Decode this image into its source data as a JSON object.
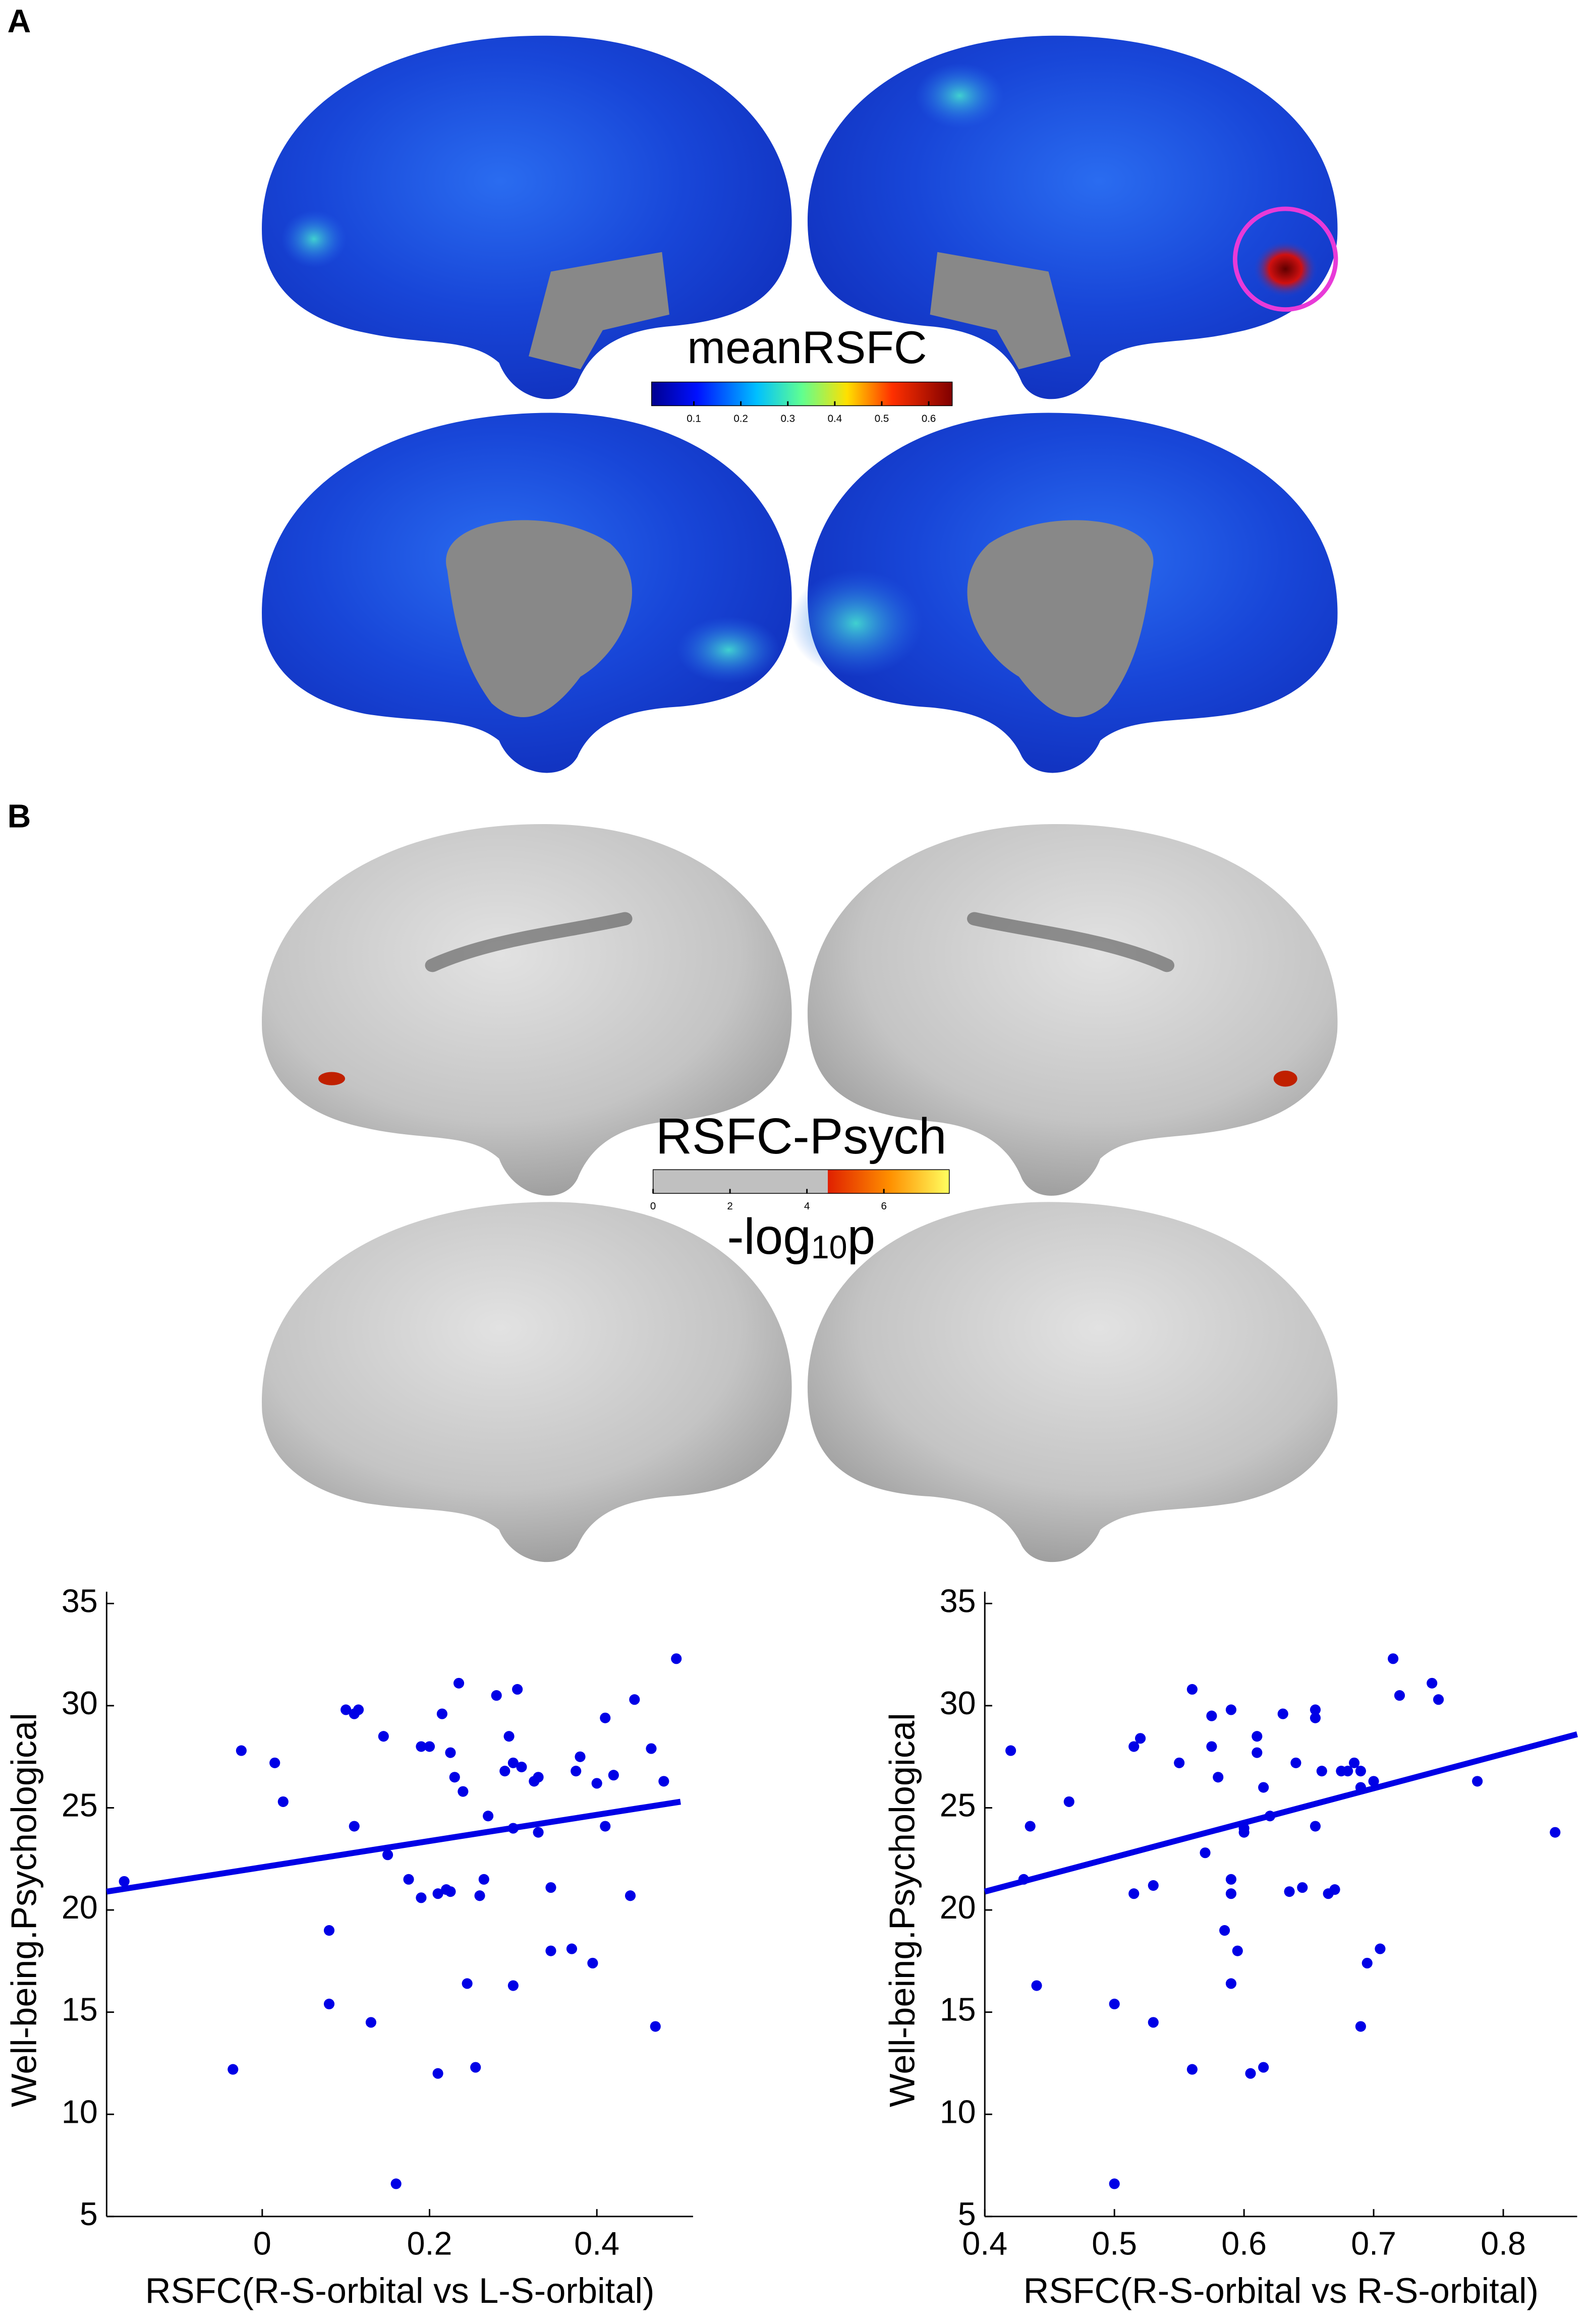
{
  "panel_labels": [
    "A",
    "B"
  ],
  "brain_maps": [
    {
      "title": "meanRSFC",
      "colorbar_lim": [
        0.01,
        0.65
      ],
      "colorbar_ticks": [
        0.1,
        0.2,
        0.3,
        0.4,
        0.5,
        0.6
      ]
    },
    {
      "title": "RSFC-Psych",
      "colorbar_lim": [
        0,
        7.7
      ],
      "colorbar_ticks": [
        0,
        2,
        4,
        6
      ],
      "colorbar_label_parts": [
        "-log",
        "10",
        "p"
      ]
    }
  ],
  "chart_data": [
    {
      "type": "scatter",
      "xlabel": "RSFC(R-S-orbital vs L-S-orbital)",
      "ylabel": "Well-being.Psychological",
      "color": "#0000e6",
      "xlim": [
        -0.186,
        0.515
      ],
      "ylim": [
        5,
        35
      ],
      "xticks": [
        0,
        0.2,
        0.4
      ],
      "yticks": [
        5,
        10,
        15,
        20,
        25,
        30,
        35
      ],
      "x": [
        -0.165,
        -0.035,
        -0.025,
        0.015,
        0.025,
        0.08,
        0.08,
        0.1,
        0.11,
        0.115,
        0.11,
        0.13,
        0.145,
        0.15,
        0.16,
        0.175,
        0.19,
        0.19,
        0.2,
        0.21,
        0.21,
        0.215,
        0.22,
        0.225,
        0.225,
        0.23,
        0.235,
        0.24,
        0.245,
        0.255,
        0.26,
        0.265,
        0.27,
        0.28,
        0.29,
        0.295,
        0.3,
        0.3,
        0.3,
        0.305,
        0.31,
        0.325,
        0.33,
        0.33,
        0.345,
        0.345,
        0.37,
        0.375,
        0.38,
        0.395,
        0.4,
        0.41,
        0.41,
        0.42,
        0.44,
        0.445,
        0.465,
        0.47,
        0.48,
        0.495
      ],
      "values": [
        21.4,
        12.2,
        27.8,
        27.2,
        25.3,
        19.0,
        15.4,
        29.8,
        29.6,
        29.8,
        24.1,
        14.5,
        28.5,
        22.7,
        6.6,
        21.5,
        28.0,
        20.6,
        28.0,
        12.0,
        20.8,
        29.6,
        21.0,
        20.9,
        27.7,
        26.5,
        31.1,
        25.8,
        16.4,
        12.3,
        20.7,
        21.5,
        24.6,
        30.5,
        26.8,
        28.5,
        27.2,
        16.3,
        24.0,
        30.8,
        27.0,
        26.3,
        26.5,
        23.8,
        21.1,
        18.0,
        18.1,
        26.8,
        27.5,
        17.4,
        26.2,
        29.4,
        24.1,
        26.6,
        20.7,
        30.3,
        27.9,
        14.3,
        26.3,
        32.3
      ],
      "fit_line": {
        "x": [
          -0.186,
          0.5
        ],
        "values": [
          20.9,
          25.3
        ],
        "color": "#0000e6"
      }
    },
    {
      "type": "scatter",
      "xlabel": "RSFC(R-S-orbital vs R-S-orbital)",
      "ylabel": "Well-being.Psychological",
      "color": "#0000e6",
      "xlim": [
        0.4,
        0.857
      ],
      "ylim": [
        5,
        35
      ],
      "xticks": [
        0.4,
        0.5,
        0.6,
        0.7,
        0.8
      ],
      "yticks": [
        5,
        10,
        15,
        20,
        25,
        30,
        35
      ],
      "x": [
        0.42,
        0.43,
        0.435,
        0.44,
        0.465,
        0.5,
        0.5,
        0.515,
        0.52,
        0.515,
        0.53,
        0.53,
        0.55,
        0.56,
        0.56,
        0.575,
        0.575,
        0.58,
        0.57,
        0.585,
        0.59,
        0.59,
        0.59,
        0.59,
        0.595,
        0.6,
        0.6,
        0.605,
        0.61,
        0.61,
        0.615,
        0.615,
        0.62,
        0.63,
        0.635,
        0.64,
        0.645,
        0.655,
        0.655,
        0.655,
        0.66,
        0.665,
        0.67,
        0.675,
        0.68,
        0.685,
        0.69,
        0.69,
        0.695,
        0.7,
        0.705,
        0.715,
        0.72,
        0.745,
        0.75,
        0.78,
        0.84,
        0.69
      ],
      "values": [
        27.8,
        21.5,
        24.1,
        16.3,
        25.3,
        15.4,
        6.6,
        28.0,
        28.4,
        20.8,
        21.2,
        14.5,
        27.2,
        30.8,
        12.2,
        29.5,
        28.0,
        26.5,
        22.8,
        19.0,
        29.8,
        21.5,
        20.8,
        16.4,
        18.0,
        24.0,
        23.8,
        12.0,
        28.5,
        27.7,
        26.0,
        12.3,
        24.6,
        29.6,
        20.9,
        27.2,
        21.1,
        29.8,
        29.4,
        24.1,
        26.8,
        20.8,
        21.0,
        26.8,
        26.8,
        27.2,
        26.8,
        14.3,
        17.4,
        26.3,
        18.1,
        32.3,
        30.5,
        31.1,
        30.3,
        26.3,
        23.8,
        26.0
      ],
      "fit_line": {
        "x": [
          0.4,
          0.857
        ],
        "values": [
          20.9,
          28.6
        ],
        "color": "#0000e6"
      }
    }
  ]
}
